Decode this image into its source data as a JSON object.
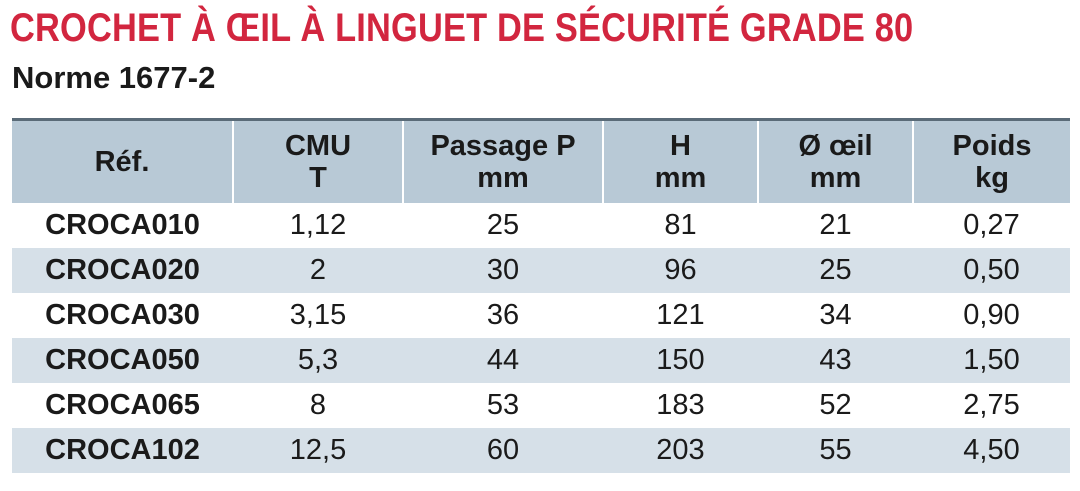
{
  "title": "CROCHET À ŒIL À LINGUET DE SÉCURITÉ GRADE 80",
  "subtitle": "Norme 1677-2",
  "colors": {
    "title": "#d2263f",
    "header_bg": "#b8c9d6",
    "row_alt": "#d6e0e8"
  },
  "table": {
    "headers": [
      {
        "line1": "Réf.",
        "line2": ""
      },
      {
        "line1": "CMU",
        "line2": "T"
      },
      {
        "line1": "Passage P",
        "line2": "mm"
      },
      {
        "line1": "H",
        "line2": "mm"
      },
      {
        "line1": "Ø œil",
        "line2": "mm"
      },
      {
        "line1": "Poids",
        "line2": "kg"
      }
    ],
    "rows": [
      {
        "ref": "CROCA010",
        "cmu": "1,12",
        "passage": "25",
        "h": "81",
        "oeil": "21",
        "poids": "0,27"
      },
      {
        "ref": "CROCA020",
        "cmu": "2",
        "passage": "30",
        "h": "96",
        "oeil": "25",
        "poids": "0,50"
      },
      {
        "ref": "CROCA030",
        "cmu": "3,15",
        "passage": "36",
        "h": "121",
        "oeil": "34",
        "poids": "0,90"
      },
      {
        "ref": "CROCA050",
        "cmu": "5,3",
        "passage": "44",
        "h": "150",
        "oeil": "43",
        "poids": "1,50"
      },
      {
        "ref": "CROCA065",
        "cmu": "8",
        "passage": "53",
        "h": "183",
        "oeil": "52",
        "poids": "2,75"
      },
      {
        "ref": "CROCA102",
        "cmu": "12,5",
        "passage": "60",
        "h": "203",
        "oeil": "55",
        "poids": "4,50"
      }
    ]
  }
}
